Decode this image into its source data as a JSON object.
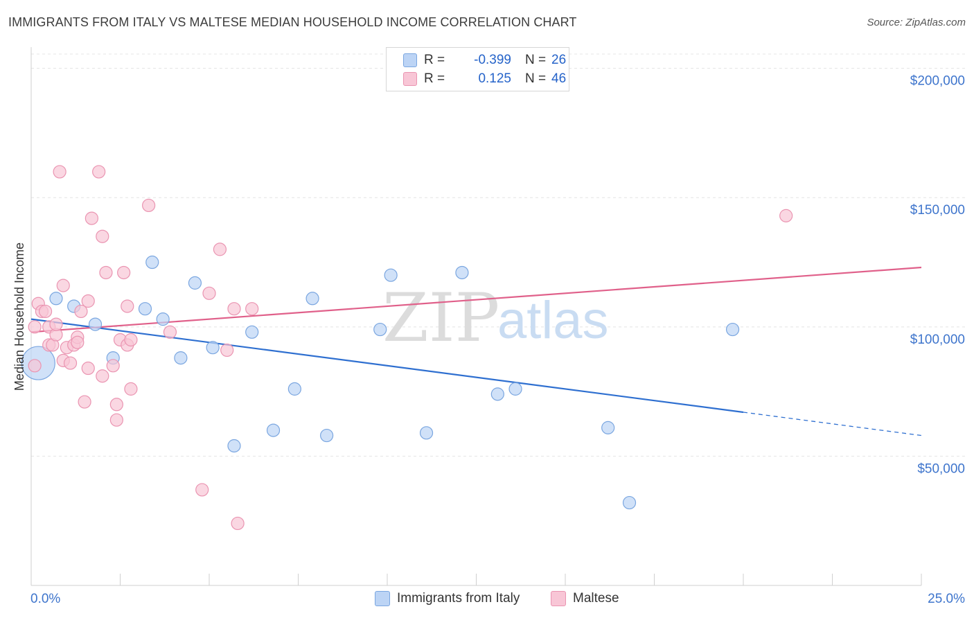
{
  "header": {
    "title": "IMMIGRANTS FROM ITALY VS MALTESE MEDIAN HOUSEHOLD INCOME CORRELATION CHART",
    "source": "Source: ZipAtlas.com"
  },
  "legend": {
    "rows": [
      {
        "r_label": "R =",
        "r_value": "-0.399",
        "n_label": "N =",
        "n_value": "26"
      },
      {
        "r_label": "R =",
        "r_value": "0.125",
        "n_label": "N =",
        "n_value": "46"
      }
    ]
  },
  "watermark": {
    "zip": "ZIP",
    "atlas": "atlas"
  },
  "colors": {
    "italy_fill": "#bcd4f5",
    "italy_stroke": "#7aa6e0",
    "italy_line": "#2e6fd0",
    "maltese_fill": "#f8c6d6",
    "maltese_stroke": "#ea94b1",
    "maltese_line": "#e0608a",
    "tick_label": "#3d74cc",
    "grid": "#e4e4e4"
  },
  "chart_data": {
    "type": "scatter",
    "title": "IMMIGRANTS FROM ITALY VS MALTESE MEDIAN HOUSEHOLD INCOME CORRELATION CHART",
    "xlabel": "",
    "ylabel": "Median Household Income",
    "xlim": [
      0,
      25
    ],
    "ylim": [
      0,
      205000
    ],
    "x_tick_labels": [
      "0.0%",
      "25.0%"
    ],
    "y_ticks": [
      {
        "value": 50000,
        "label": "$50,000"
      },
      {
        "value": 100000,
        "label": "$100,000"
      },
      {
        "value": 150000,
        "label": "$150,000"
      },
      {
        "value": 200000,
        "label": "$200,000"
      }
    ],
    "grid": true,
    "series": [
      {
        "name": "Immigrants from Italy",
        "r": -0.399,
        "n": 26,
        "points": [
          {
            "x": 0.2,
            "y": 86000,
            "big": true
          },
          {
            "x": 0.7,
            "y": 111000
          },
          {
            "x": 1.2,
            "y": 108000
          },
          {
            "x": 1.8,
            "y": 101000
          },
          {
            "x": 2.3,
            "y": 88000
          },
          {
            "x": 3.4,
            "y": 125000
          },
          {
            "x": 3.2,
            "y": 107000
          },
          {
            "x": 3.7,
            "y": 103000
          },
          {
            "x": 4.2,
            "y": 88000
          },
          {
            "x": 4.6,
            "y": 117000
          },
          {
            "x": 5.1,
            "y": 92000
          },
          {
            "x": 5.7,
            "y": 54000
          },
          {
            "x": 6.2,
            "y": 98000
          },
          {
            "x": 6.8,
            "y": 60000
          },
          {
            "x": 7.4,
            "y": 76000
          },
          {
            "x": 7.9,
            "y": 111000
          },
          {
            "x": 8.3,
            "y": 58000
          },
          {
            "x": 9.8,
            "y": 99000
          },
          {
            "x": 10.1,
            "y": 120000
          },
          {
            "x": 11.1,
            "y": 59000
          },
          {
            "x": 12.1,
            "y": 121000
          },
          {
            "x": 13.1,
            "y": 74000
          },
          {
            "x": 13.6,
            "y": 76000
          },
          {
            "x": 16.2,
            "y": 61000
          },
          {
            "x": 16.8,
            "y": 32000
          },
          {
            "x": 19.7,
            "y": 99000
          }
        ],
        "trend": {
          "x0": 0,
          "y0": 103000,
          "x1": 20,
          "y1": 67000,
          "dash_to_x": 25,
          "dash_to_y": 58000
        }
      },
      {
        "name": "Maltese",
        "r": 0.125,
        "n": 46,
        "points": [
          {
            "x": 0.1,
            "y": 100000
          },
          {
            "x": 0.2,
            "y": 109000
          },
          {
            "x": 0.3,
            "y": 106000
          },
          {
            "x": 0.4,
            "y": 106000
          },
          {
            "x": 0.5,
            "y": 93000
          },
          {
            "x": 0.5,
            "y": 100000
          },
          {
            "x": 0.6,
            "y": 93000
          },
          {
            "x": 0.7,
            "y": 97000
          },
          {
            "x": 0.7,
            "y": 101000
          },
          {
            "x": 0.8,
            "y": 160000
          },
          {
            "x": 0.9,
            "y": 116000
          },
          {
            "x": 0.9,
            "y": 87000
          },
          {
            "x": 1.0,
            "y": 92000
          },
          {
            "x": 1.1,
            "y": 86000
          },
          {
            "x": 1.2,
            "y": 93000
          },
          {
            "x": 1.3,
            "y": 96000
          },
          {
            "x": 1.3,
            "y": 94000
          },
          {
            "x": 1.4,
            "y": 106000
          },
          {
            "x": 1.5,
            "y": 71000
          },
          {
            "x": 1.6,
            "y": 110000
          },
          {
            "x": 1.6,
            "y": 84000
          },
          {
            "x": 1.7,
            "y": 142000
          },
          {
            "x": 1.9,
            "y": 160000
          },
          {
            "x": 2.0,
            "y": 135000
          },
          {
            "x": 2.0,
            "y": 81000
          },
          {
            "x": 2.1,
            "y": 121000
          },
          {
            "x": 2.3,
            "y": 85000
          },
          {
            "x": 2.4,
            "y": 70000
          },
          {
            "x": 2.4,
            "y": 64000
          },
          {
            "x": 2.5,
            "y": 95000
          },
          {
            "x": 2.6,
            "y": 121000
          },
          {
            "x": 2.7,
            "y": 108000
          },
          {
            "x": 2.7,
            "y": 93000
          },
          {
            "x": 2.8,
            "y": 95000
          },
          {
            "x": 2.8,
            "y": 76000
          },
          {
            "x": 3.3,
            "y": 147000
          },
          {
            "x": 3.9,
            "y": 98000
          },
          {
            "x": 4.8,
            "y": 37000
          },
          {
            "x": 5.0,
            "y": 113000
          },
          {
            "x": 5.3,
            "y": 130000
          },
          {
            "x": 5.5,
            "y": 91000
          },
          {
            "x": 5.7,
            "y": 107000
          },
          {
            "x": 5.8,
            "y": 24000
          },
          {
            "x": 6.2,
            "y": 107000
          },
          {
            "x": 21.2,
            "y": 143000
          },
          {
            "x": 0.1,
            "y": 85000
          }
        ],
        "trend": {
          "x0": 0,
          "y0": 98000,
          "x1": 25,
          "y1": 123000
        }
      }
    ]
  }
}
